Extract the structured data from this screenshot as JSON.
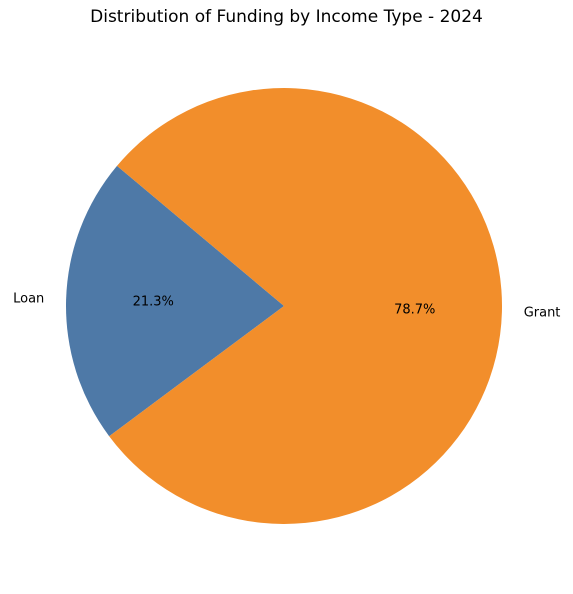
{
  "chart_data": {
    "type": "pie",
    "title": "Distribution of Funding by Income Type - 2024",
    "slices": [
      {
        "label": "Loan",
        "value": 21.3,
        "pct_label": "21.3%",
        "color": "#4e79a7"
      },
      {
        "label": "Grant",
        "value": 78.7,
        "pct_label": "78.7%",
        "color": "#f28e2b"
      }
    ],
    "start_angle_deg": 140,
    "direction": "counterclockwise",
    "legend": "none"
  }
}
